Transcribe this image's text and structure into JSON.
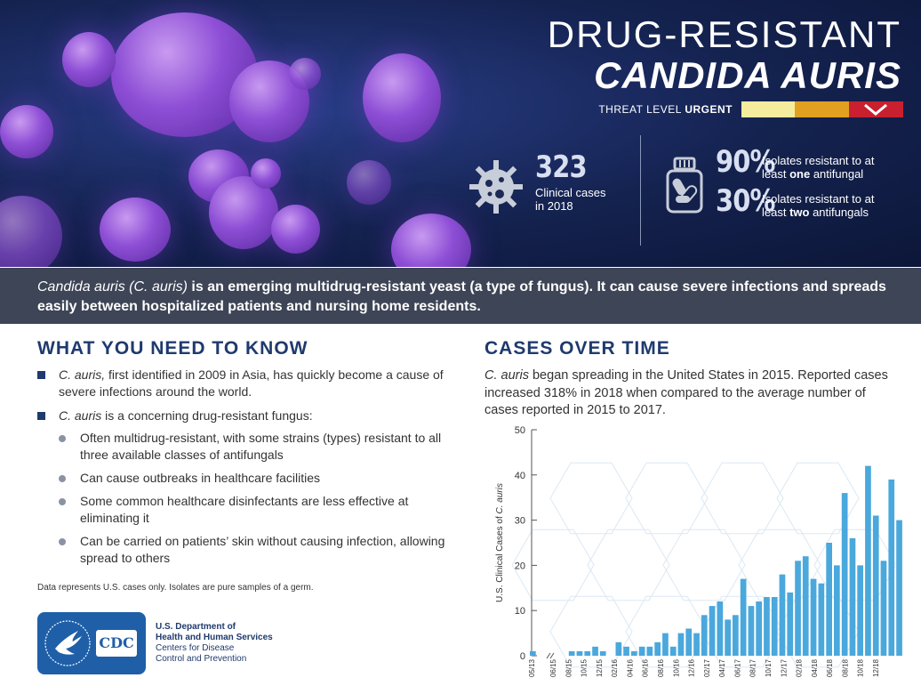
{
  "hero": {
    "title_line1": "DRUG-RESISTANT",
    "title_line2": "CANDIDA AURIS",
    "threat_prefix": "THREAT LEVEL ",
    "threat_level": "URGENT",
    "threat_colors": [
      "#f6ec9e",
      "#e2a021",
      "#c8202f"
    ],
    "stat1": {
      "value": "323",
      "label_line1": "Clinical cases",
      "label_line2": "in 2018",
      "icon": "germ-icon"
    },
    "stat2": {
      "value": "90%",
      "label_line1": "Isolates resistant to at",
      "label_line2_pre": "least ",
      "label_line2_bold": "one",
      "label_line2_post": " antifungal"
    },
    "stat3": {
      "value": "30%",
      "label_line1": "Isolates resistant to at",
      "label_line2_pre": "least ",
      "label_line2_bold": "two",
      "label_line2_post": " antifungals",
      "icon": "pill-bottle-icon"
    }
  },
  "banner": {
    "italic_lead": "Candida auris (C. auris)",
    "text": " is an emerging multidrug-resistant yeast (a type of fungus). It can cause severe infections and spreads easily between hospitalized patients and nursing home residents."
  },
  "need_to_know": {
    "heading": "WHAT YOU NEED TO KNOW",
    "item1_italic": "C. auris,",
    "item1_text": " first identified in 2009 in Asia, has quickly become a cause of severe infections around the world.",
    "item2_italic": "C. auris",
    "item2_text": " is a concerning drug-resistant fungus:",
    "subitems": [
      "Often multidrug-resistant, with some strains (types) resistant to all three available classes of antifungals",
      "Can cause outbreaks in healthcare facilities",
      "Some common healthcare disinfectants are less effective at eliminating it",
      "Can be carried on patients’ skin without causing infection, allowing spread to others"
    ],
    "footnote": "Data represents U.S. cases only. Isolates are pure samples of a germ."
  },
  "org": {
    "line1": "U.S. Department of",
    "line2": "Health and Human Services",
    "line3": "Centers for Disease",
    "line4": "Control and Prevention",
    "logo_text": "CDC"
  },
  "cases": {
    "heading": "CASES OVER TIME",
    "desc_italic": "C. auris",
    "desc_text": " began spreading in the United States in 2015. Reported cases increased 318% in 2018 when compared to the average number of cases reported in 2015 to 2017."
  },
  "chart_data": {
    "type": "bar",
    "title": "",
    "xlabel": "",
    "ylabel_pre": "U.S. Clinical Cases of ",
    "ylabel_italic": "C. auris",
    "ylim": [
      0,
      50
    ],
    "yticks": [
      0,
      10,
      20,
      30,
      40,
      50
    ],
    "bar_color": "#4aa8dc",
    "tick_labels": [
      "05/13",
      "06/15",
      "08/15",
      "10/15",
      "12/15",
      "02/16",
      "04/16",
      "06/16",
      "08/16",
      "10/16",
      "12/16",
      "02/17",
      "04/17",
      "06/17",
      "08/17",
      "10/17",
      "12/17",
      "02/18",
      "04/18",
      "06/18",
      "08/18",
      "10/18",
      "12/18"
    ],
    "values": [
      1,
      0,
      0,
      0,
      0,
      1,
      1,
      1,
      2,
      1,
      0,
      3,
      2,
      1,
      2,
      2,
      3,
      5,
      2,
      5,
      6,
      5,
      9,
      11,
      12,
      8,
      9,
      17,
      11,
      12,
      13,
      13,
      18,
      14,
      21,
      22,
      17,
      16,
      25,
      20,
      36,
      26,
      20,
      42,
      31,
      21,
      39,
      30
    ]
  }
}
